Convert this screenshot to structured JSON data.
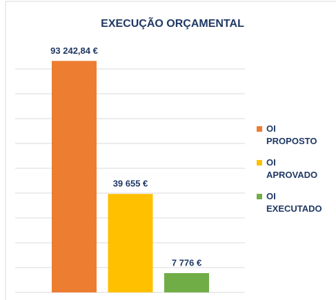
{
  "chart_data": {
    "type": "bar",
    "title": "EXECUÇÃO ORÇAMENTAL",
    "series": [
      {
        "name": "OI PROPOSTO",
        "color": "#ed7d31",
        "values": [
          93242.84
        ],
        "value_labels": [
          "93 242,84 €"
        ]
      },
      {
        "name": "OI APROVADO",
        "color": "#ffc000",
        "values": [
          39655
        ],
        "value_labels": [
          "39 655 €"
        ]
      },
      {
        "name": "OI EXECUTADO",
        "color": "#70ad47",
        "values": [
          7776
        ],
        "value_labels": [
          "7 776 €"
        ]
      }
    ],
    "ylim": [
      0,
      100000
    ],
    "yticks": [
      0,
      10000,
      20000,
      30000,
      40000,
      50000,
      60000,
      70000,
      80000,
      90000
    ],
    "grid": true,
    "legend": "right"
  }
}
